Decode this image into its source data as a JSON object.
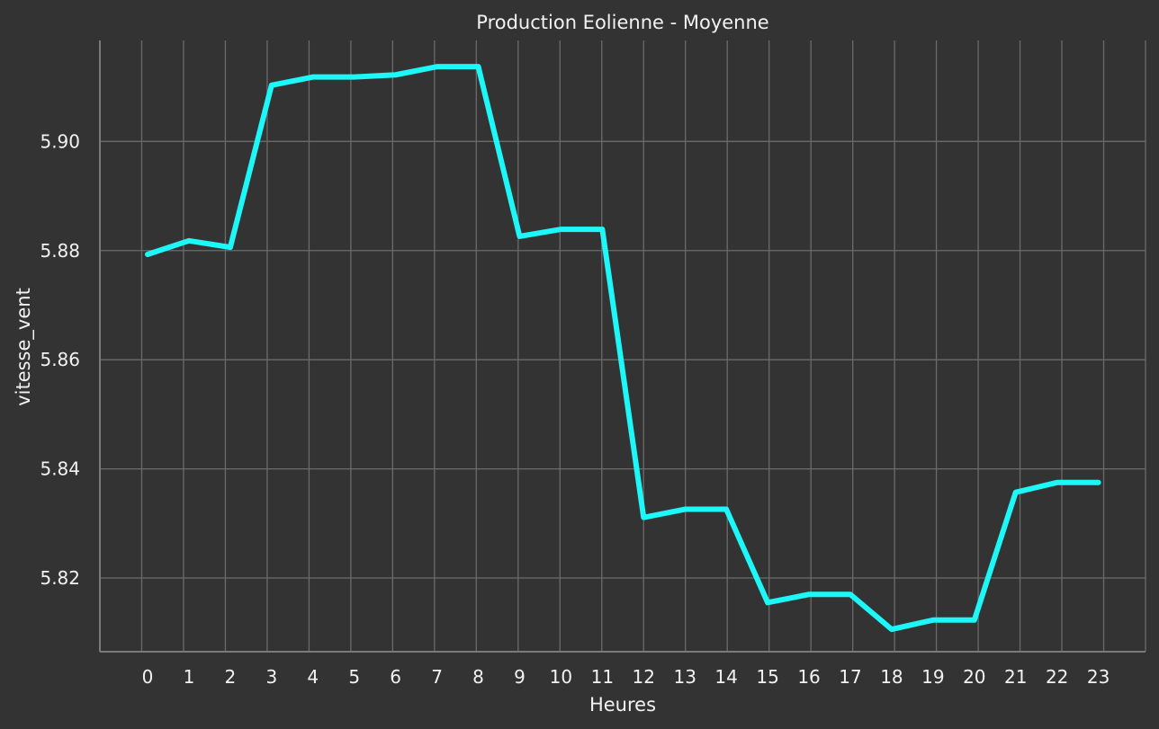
{
  "chart_data": {
    "type": "line",
    "title": "Production Eolienne - Moyenne",
    "xlabel": "Heures",
    "ylabel": "vitesse_vent",
    "x": [
      0,
      1,
      2,
      3,
      4,
      5,
      6,
      7,
      8,
      9,
      10,
      11,
      12,
      13,
      14,
      15,
      16,
      17,
      18,
      19,
      20,
      21,
      22,
      23
    ],
    "series": [
      {
        "name": "",
        "values": [
          5.8793,
          5.8818,
          5.8806,
          5.9103,
          5.9118,
          5.9118,
          5.9122,
          5.9137,
          5.9137,
          5.8826,
          5.8839,
          5.8839,
          5.8311,
          5.8326,
          5.8326,
          5.8155,
          5.817,
          5.817,
          5.8106,
          5.8123,
          5.8123,
          5.8357,
          5.8375,
          5.8375
        ]
      }
    ],
    "ylim": [
      5.8065,
      5.9185
    ],
    "yticks": [
      "5.82",
      "5.84",
      "5.86",
      "5.88",
      "5.90"
    ],
    "ytick_values": [
      5.82,
      5.84,
      5.86,
      5.88,
      5.9
    ],
    "xticks": [
      "0",
      "1",
      "2",
      "3",
      "4",
      "5",
      "6",
      "7",
      "8",
      "9",
      "10",
      "11",
      "12",
      "13",
      "14",
      "15",
      "16",
      "17",
      "18",
      "19",
      "20",
      "21",
      "22",
      "23"
    ],
    "grid": true,
    "colors": {
      "background": "#333333",
      "grid": "#6b6b6b",
      "axis": "#7a7a7a",
      "text": "#f2f2f2",
      "line": "#1ef7f7"
    }
  }
}
